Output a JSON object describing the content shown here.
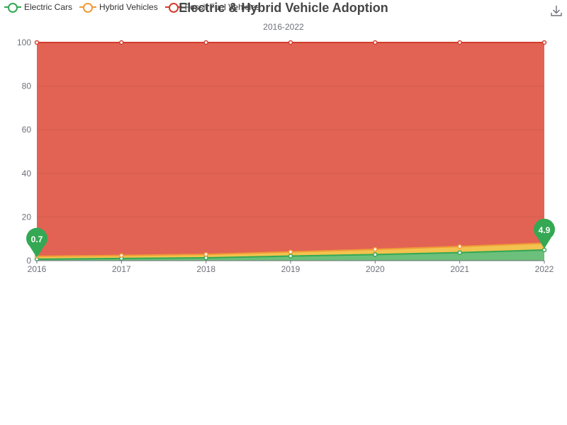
{
  "title": "Electric & Hybrid Vehicle Adoption",
  "subtitle": "2016-2022",
  "toolbox": {
    "download_icon": "download-icon"
  },
  "colors": {
    "electric": "#34a853",
    "hybrid": "#f09a37",
    "fossil": "#d23c2d",
    "fossil_fill": "#e26354",
    "hybrid_fill": "#f3c24f",
    "electric_fill": "#6cc07b"
  },
  "chart_data": {
    "type": "area",
    "stacked": true,
    "categories": [
      "2016",
      "2017",
      "2018",
      "2019",
      "2020",
      "2021",
      "2022"
    ],
    "series": [
      {
        "name": "Electric Cars",
        "values": [
          0.7,
          1.0,
          1.3,
          2.1,
          2.8,
          3.7,
          4.9
        ]
      },
      {
        "name": "Hybrid Vehicles",
        "values": [
          1.3,
          1.4,
          1.6,
          1.9,
          2.4,
          2.8,
          3.1
        ]
      },
      {
        "name": "Fossil Fuel Vehicles",
        "values": [
          98.0,
          97.6,
          97.1,
          96.0,
          94.8,
          93.5,
          92.0
        ]
      }
    ],
    "ylim": [
      0,
      100
    ],
    "yticks": [
      "0",
      "20",
      "40",
      "60",
      "80",
      "100"
    ],
    "grid": true,
    "legend": "top-left",
    "markers": [
      {
        "series": "Electric Cars",
        "category": "2016",
        "label": "0.7"
      },
      {
        "series": "Electric Cars",
        "category": "2022",
        "label": "4.9"
      }
    ]
  }
}
